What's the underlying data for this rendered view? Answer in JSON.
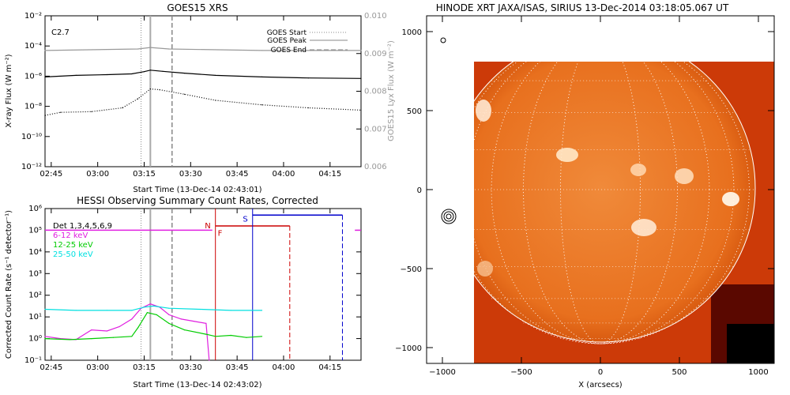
{
  "chart_data": [
    {
      "type": "line",
      "title": "GOES15 XRS",
      "xlabel": "Start Time (13-Dec-14 02:43:01)",
      "ylabel": "X-ray Flux (W m⁻²)",
      "ylabel_right": "GOES15 Lyx Flux (W m⁻²)",
      "x_ticks": [
        "02:45",
        "03:00",
        "03:15",
        "03:30",
        "03:45",
        "04:00",
        "04:15"
      ],
      "y_ticks": [
        "10⁻¹²",
        "10⁻¹⁰",
        "10⁻⁸",
        "10⁻⁶",
        "10⁻⁴",
        "10⁻²"
      ],
      "y2_ticks": [
        "0.006",
        "0.007",
        "0.008",
        "0.009",
        "0.010"
      ],
      "ylim": [
        -12,
        -2
      ],
      "y2lim": [
        0.006,
        0.01
      ],
      "log_y": true,
      "annotation": "C2.7",
      "legend": [
        {
          "label": "GOES Start",
          "style": "dotted"
        },
        {
          "label": "GOES Peak",
          "style": "solid"
        },
        {
          "label": "GOES End",
          "style": "dashed"
        }
      ],
      "legend_position": "top-right",
      "event_lines_min": {
        "start": 31,
        "peak": 34,
        "end": 41
      },
      "series": [
        {
          "name": "",
          "color": "#000000",
          "style": "solid",
          "x_min": [
            0,
            10,
            20,
            28,
            32,
            34,
            38,
            45,
            55,
            70,
            85,
            102
          ],
          "log_values": [
            -6.05,
            -5.95,
            -5.9,
            -5.85,
            -5.7,
            -5.6,
            -5.68,
            -5.8,
            -5.95,
            -6.05,
            -6.12,
            -6.15
          ]
        },
        {
          "name": "",
          "color": "#000000",
          "style": "dotted",
          "x_min": [
            0,
            5,
            15,
            25,
            30,
            34,
            37,
            45,
            55,
            70,
            85,
            102
          ],
          "log_values": [
            -8.6,
            -8.4,
            -8.35,
            -8.1,
            -7.5,
            -6.85,
            -6.9,
            -7.2,
            -7.6,
            -7.9,
            -8.1,
            -8.25
          ]
        },
        {
          "name": "",
          "color": "#999999",
          "style": "solid",
          "x_min": [
            0,
            30,
            34,
            40,
            70,
            102
          ],
          "log_values": [
            -4.3,
            -4.2,
            -4.1,
            -4.2,
            -4.3,
            -4.3
          ]
        }
      ]
    },
    {
      "type": "line",
      "title": "HESSI Observing Summary Count Rates, Corrected",
      "xlabel": "Start Time (13-Dec-14 02:43:02)",
      "ylabel": "Corrected Count Rate (s⁻¹ detector⁻¹)",
      "x_ticks": [
        "02:45",
        "03:00",
        "03:15",
        "03:30",
        "03:45",
        "04:00",
        "04:15"
      ],
      "y_ticks": [
        "10⁻¹",
        "10⁰",
        "10¹",
        "10²",
        "10³",
        "10⁴",
        "10⁵",
        "10⁶"
      ],
      "ylim": [
        -1,
        6
      ],
      "log_y": true,
      "legend": [
        {
          "label": "Det 1,3,4,5,6,9",
          "color": "#000000"
        },
        {
          "label": "6-12 keV",
          "color": "#e020e0"
        },
        {
          "label": "12-25 keV",
          "color": "#00cc00"
        },
        {
          "label": "25-50 keV",
          "color": "#00e0e0"
        }
      ],
      "legend_position": "top-left",
      "flag_labels": {
        "night": "N",
        "flare": "F",
        "saa": "S"
      },
      "series": [
        {
          "name": "6-12 keV",
          "color": "#e020e0",
          "x_min": [
            0,
            5,
            10,
            15,
            20,
            24,
            28,
            31,
            34,
            37,
            40,
            44,
            48,
            52,
            53
          ],
          "log_values": [
            0.1,
            0.0,
            -0.05,
            0.4,
            0.35,
            0.55,
            0.9,
            1.4,
            1.6,
            1.45,
            1.1,
            0.9,
            0.8,
            0.7,
            -1
          ]
        },
        {
          "name": "12-25 keV",
          "color": "#00cc00",
          "x_min": [
            0,
            8,
            15,
            22,
            28,
            30,
            33,
            36,
            40,
            45,
            52,
            55,
            60,
            65,
            70
          ],
          "log_values": [
            0.0,
            -0.05,
            0.0,
            0.05,
            0.1,
            0.5,
            1.2,
            1.1,
            0.7,
            0.4,
            0.2,
            0.1,
            0.15,
            0.05,
            0.1
          ]
        },
        {
          "name": "25-50 keV",
          "color": "#00e0e0",
          "x_min": [
            0,
            10,
            20,
            28,
            32,
            35,
            40,
            50,
            60,
            70
          ],
          "log_values": [
            1.35,
            1.3,
            1.3,
            1.3,
            1.45,
            1.5,
            1.4,
            1.35,
            1.3,
            1.3
          ]
        }
      ]
    },
    {
      "type": "heatmap",
      "title": "HINODE XRT JAXA/ISAS, SIRIUS 13-Dec-2014 03:18:05.067 UT",
      "xlabel": "X (arcsecs)",
      "ylabel": "",
      "xlim": [
        -1100,
        1100
      ],
      "ylim": [
        -1100,
        1100
      ],
      "x_ticks": [
        "−1000",
        "−500",
        "0",
        "500",
        "1000"
      ],
      "y_ticks": [
        "−1000",
        "−500",
        "0",
        "500",
        "1000"
      ],
      "colormap": "red-orange",
      "solar_radius_arcsec": 975
    }
  ],
  "colors": {
    "goes_primary": "#000000",
    "goes_lya": "#999999",
    "event_peak": "#aaaaaa",
    "flag_night": "#cc0000",
    "flag_saa": "#0000cc",
    "disk_fill": "#e8641c",
    "limb": "#ffffff"
  }
}
